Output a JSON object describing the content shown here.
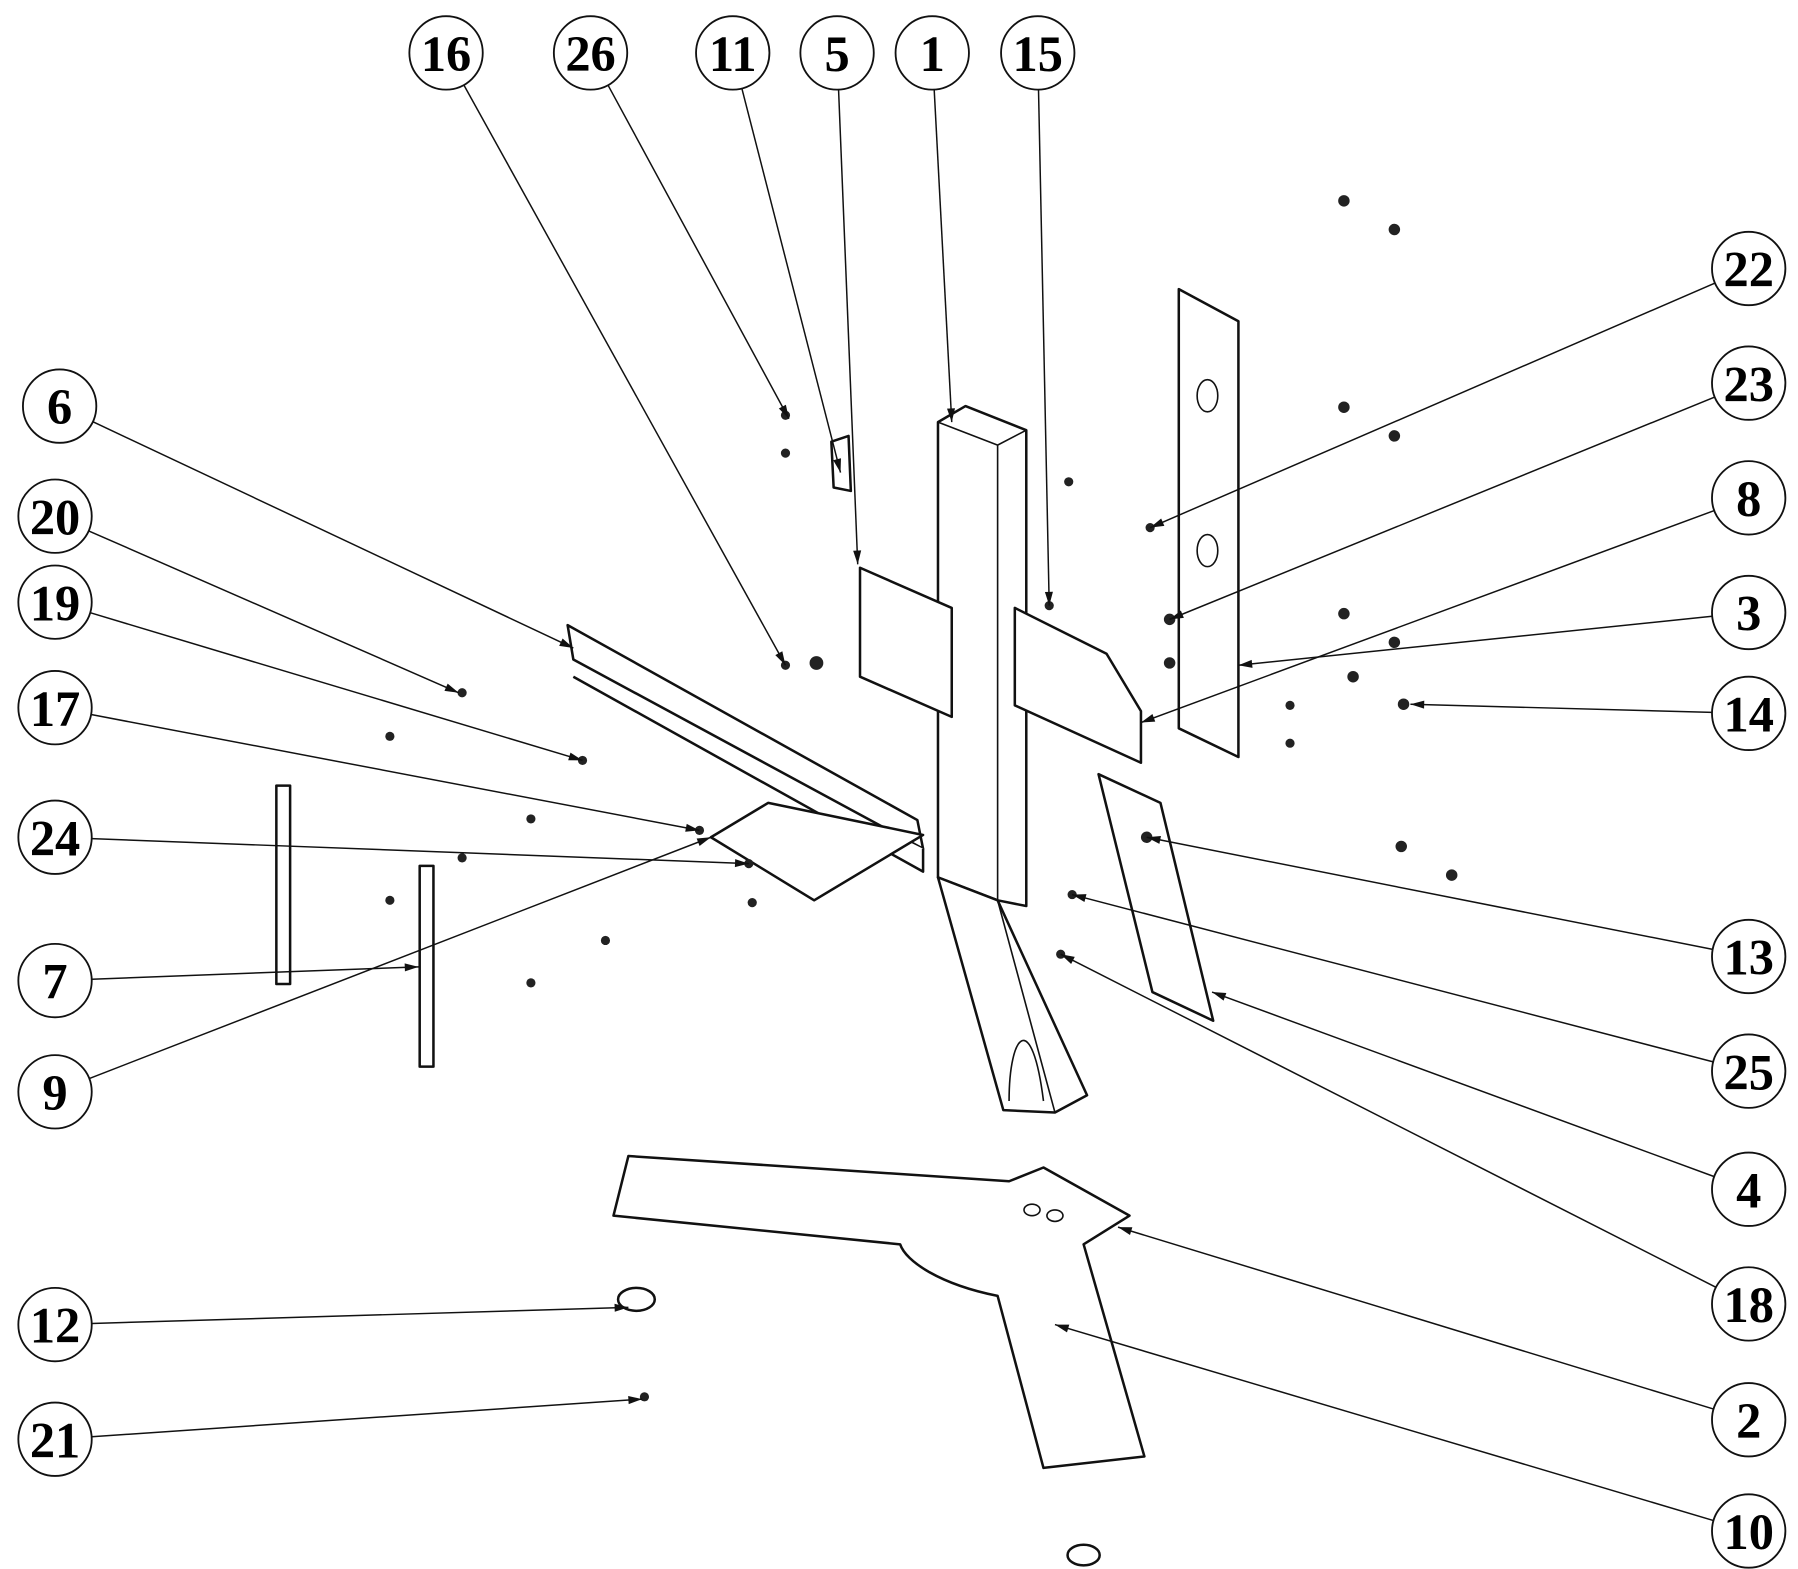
{
  "callouts": [
    {
      "label": "16"
    },
    {
      "label": "26"
    },
    {
      "label": "11"
    },
    {
      "label": "5"
    },
    {
      "label": "1"
    },
    {
      "label": "15"
    },
    {
      "label": "22"
    },
    {
      "label": "23"
    },
    {
      "label": "8"
    },
    {
      "label": "3"
    },
    {
      "label": "14"
    },
    {
      "label": "13"
    },
    {
      "label": "25"
    },
    {
      "label": "4"
    },
    {
      "label": "18"
    },
    {
      "label": "2"
    },
    {
      "label": "10"
    },
    {
      "label": "6"
    },
    {
      "label": "20"
    },
    {
      "label": "19"
    },
    {
      "label": "17"
    },
    {
      "label": "24"
    },
    {
      "label": "7"
    },
    {
      "label": "9"
    },
    {
      "label": "12"
    },
    {
      "label": "21"
    }
  ]
}
